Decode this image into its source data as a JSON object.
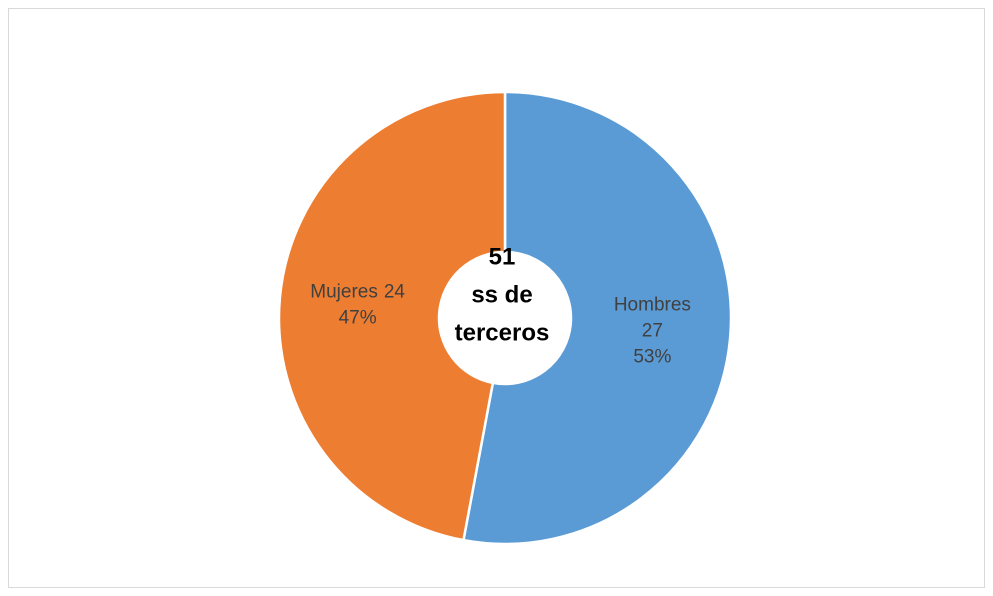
{
  "chart_data": {
    "type": "donut",
    "categories": [
      "Hombres",
      "Mujeres"
    ],
    "values": [
      27,
      24
    ],
    "percent_labels": [
      "53%",
      "47%"
    ],
    "colors": [
      "#5b9bd5",
      "#ed7d31"
    ],
    "center_total": 51,
    "center_text": [
      "ss de",
      "terceros"
    ]
  }
}
